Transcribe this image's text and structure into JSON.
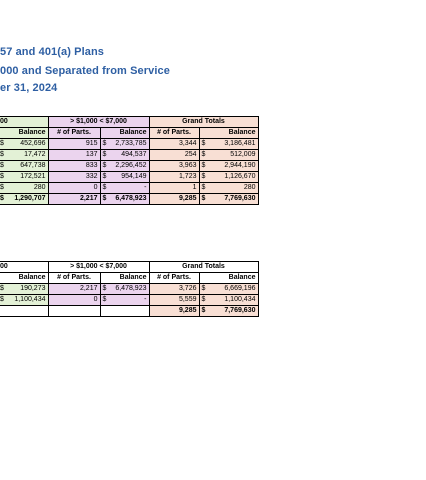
{
  "titles": {
    "line1": "57 and 401(a) Plans",
    "line2": "000 and Separated from Service",
    "line3": "er 31, 2024"
  },
  "table1": {
    "group_headers": {
      "left": "00",
      "mid": "> $1,000 < $7,000",
      "right": "Grand Totals"
    },
    "col_headers": {
      "balance": "Balance",
      "parts": "# of Parts."
    },
    "rows": [
      {
        "bal_a_sym": "$",
        "bal_a": "452,696",
        "parts_b": "915",
        "bal_b_sym": "$",
        "bal_b": "2,733,785",
        "parts_c": "3,344",
        "bal_c_sym": "$",
        "bal_c": "3,186,481"
      },
      {
        "bal_a_sym": "$",
        "bal_a": "17,472",
        "parts_b": "137",
        "bal_b_sym": "$",
        "bal_b": "494,537",
        "parts_c": "254",
        "bal_c_sym": "$",
        "bal_c": "512,009"
      },
      {
        "bal_a_sym": "$",
        "bal_a": "647,738",
        "parts_b": "833",
        "bal_b_sym": "$",
        "bal_b": "2,296,452",
        "parts_c": "3,963",
        "bal_c_sym": "$",
        "bal_c": "2,944,190"
      },
      {
        "bal_a_sym": "$",
        "bal_a": "172,521",
        "parts_b": "332",
        "bal_b_sym": "$",
        "bal_b": "954,149",
        "parts_c": "1,723",
        "bal_c_sym": "$",
        "bal_c": "1,126,670"
      },
      {
        "bal_a_sym": "$",
        "bal_a": "280",
        "parts_b": "0",
        "bal_b_sym": "$",
        "bal_b": "-",
        "parts_c": "1",
        "bal_c_sym": "$",
        "bal_c": "280"
      }
    ],
    "total": {
      "bal_a_sym": "$",
      "bal_a": "1,290,707",
      "parts_b": "2,217",
      "bal_b_sym": "$",
      "bal_b": "6,478,923",
      "parts_c": "9,285",
      "bal_c_sym": "$",
      "bal_c": "7,769,630"
    }
  },
  "table2": {
    "group_headers": {
      "left": "00",
      "mid": "> $1,000 < $7,000",
      "right": "Grand Totals"
    },
    "col_headers": {
      "balance": "Balance",
      "parts": "# of Parts."
    },
    "rows": [
      {
        "bal_a_sym": "$",
        "bal_a": "190,273",
        "parts_b": "2,217",
        "bal_b_sym": "$",
        "bal_b": "6,478,923",
        "parts_c": "3,726",
        "bal_c_sym": "$",
        "bal_c": "6,669,196"
      },
      {
        "bal_a_sym": "$",
        "bal_a": "1,100,434",
        "parts_b": "0",
        "bal_b_sym": "$",
        "bal_b": "-",
        "parts_c": "5,559",
        "bal_c_sym": "$",
        "bal_c": "1,100,434"
      }
    ],
    "total": {
      "parts_c": "9,285",
      "bal_c_sym": "$",
      "bal_c": "7,769,630"
    }
  },
  "colors": {
    "title": "#2e5fa3",
    "green": "#e3f1d6",
    "purple": "#ebd4ee",
    "orange": "#f8dfd4"
  }
}
